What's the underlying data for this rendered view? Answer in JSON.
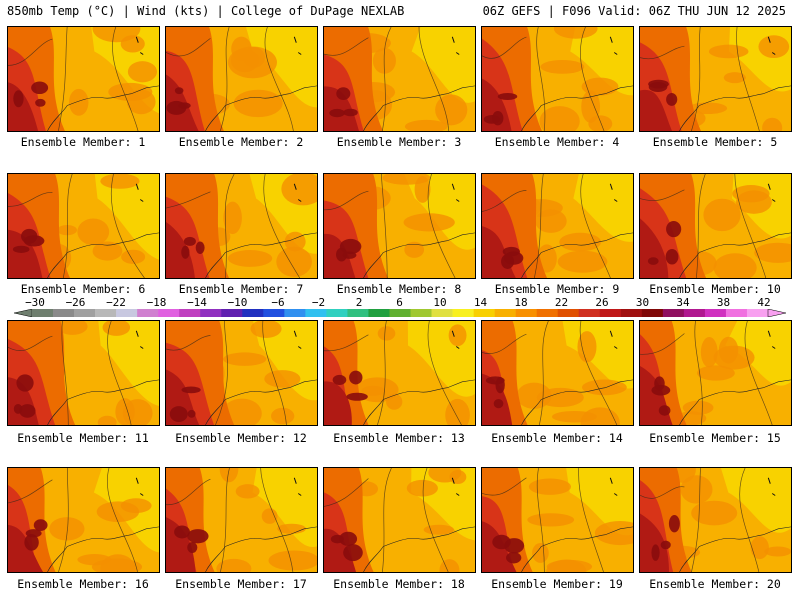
{
  "header": {
    "left": "850mb Temp (°C) | Wind (kts) | College of DuPage NEXLAB",
    "right": "06Z GEFS | F096 Valid: 06Z THU JUN 12 2025"
  },
  "members": [
    "Ensemble Member: 1",
    "Ensemble Member: 2",
    "Ensemble Member: 3",
    "Ensemble Member: 4",
    "Ensemble Member: 5",
    "Ensemble Member: 6",
    "Ensemble Member: 7",
    "Ensemble Member: 8",
    "Ensemble Member: 9",
    "Ensemble Member: 10",
    "Ensemble Member: 11",
    "Ensemble Member: 12",
    "Ensemble Member: 13",
    "Ensemble Member: 14",
    "Ensemble Member: 15",
    "Ensemble Member: 16",
    "Ensemble Member: 17",
    "Ensemble Member: 18",
    "Ensemble Member: 19",
    "Ensemble Member: 20"
  ],
  "colorbar": {
    "labels": [
      "−30",
      "−26",
      "−22",
      "−18",
      "−14",
      "−10",
      "−6",
      "−2",
      "2",
      "6",
      "10",
      "14",
      "18",
      "22",
      "26",
      "30",
      "34",
      "38",
      "42"
    ],
    "colors": [
      "#6f7f6f",
      "#8a8a8a",
      "#a0a0a0",
      "#b8b8b8",
      "#c8c8e0",
      "#d080d0",
      "#e060e0",
      "#c040c0",
      "#9030c0",
      "#6020b0",
      "#2030c0",
      "#2050e0",
      "#3090f0",
      "#30c0f0",
      "#30d0c0",
      "#30c080",
      "#20a040",
      "#60b030",
      "#a0c830",
      "#e0e040",
      "#f8f020",
      "#f8d000",
      "#f8b000",
      "#f89000",
      "#f07000",
      "#e05000",
      "#d03020",
      "#c01818",
      "#a01010",
      "#800808",
      "#901060",
      "#b01890",
      "#d030c0",
      "#f070e0",
      "#f8a0f0"
    ]
  },
  "map_colors": {
    "yellow": "#f8d800",
    "light_orange": "#f8b000",
    "orange": "#f49000",
    "dark_orange": "#ec6c00",
    "red": "#d83418",
    "dark_red": "#b01a14",
    "maroon": "#8a0c0c"
  }
}
